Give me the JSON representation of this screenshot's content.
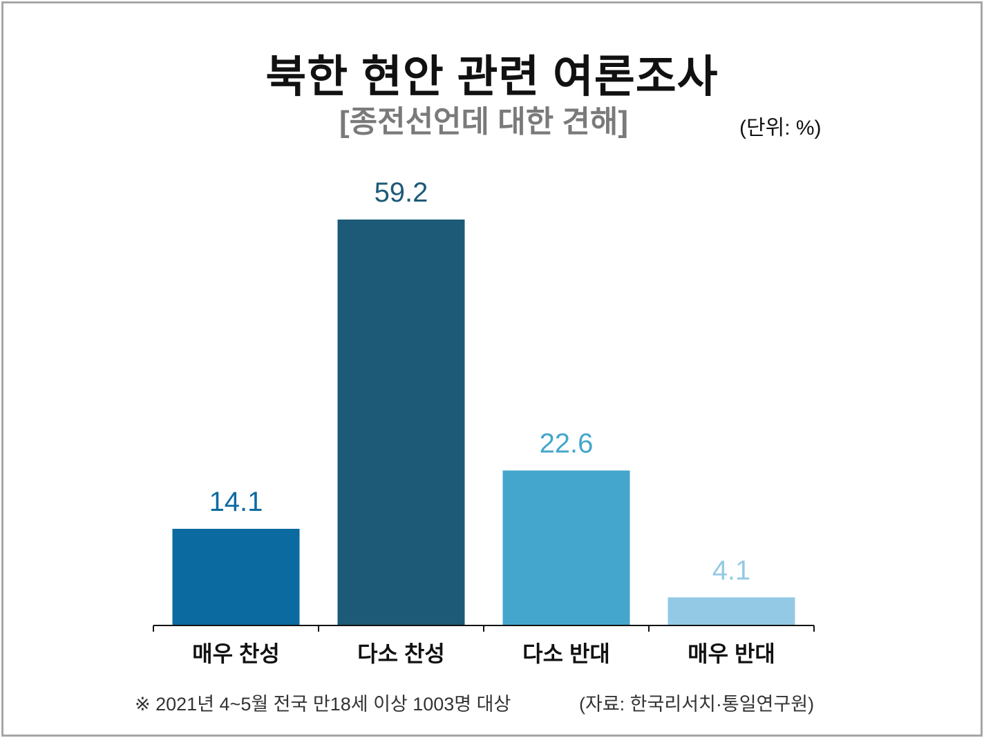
{
  "header": {
    "title": "북한 현안 관련 여론조사",
    "subtitle": "[종전선언데 대한 견해]",
    "unit": "(단위: %)"
  },
  "footer": {
    "note": "※ 2021년 4~5월 전국 만18세 이상 1003명 대상",
    "source": "(자료: 한국리서치·통일연구원)"
  },
  "chart_data": {
    "type": "bar",
    "categories": [
      "매우 찬성",
      "다소 찬성",
      "다소 반대",
      "매우 반대"
    ],
    "values": [
      14.1,
      59.2,
      22.6,
      4.1
    ],
    "value_labels": [
      "14.1",
      "59.2",
      "22.6",
      "4.1"
    ],
    "colors": [
      "#0b6aa0",
      "#1d5a77",
      "#44a6cc",
      "#93c9e5"
    ],
    "label_colors": [
      "#0b6aa0",
      "#1d5a77",
      "#44a6cc",
      "#93c9e5"
    ],
    "axis_color": "#111111",
    "ylim": [
      0,
      60
    ],
    "grid": false,
    "legend": "none"
  }
}
